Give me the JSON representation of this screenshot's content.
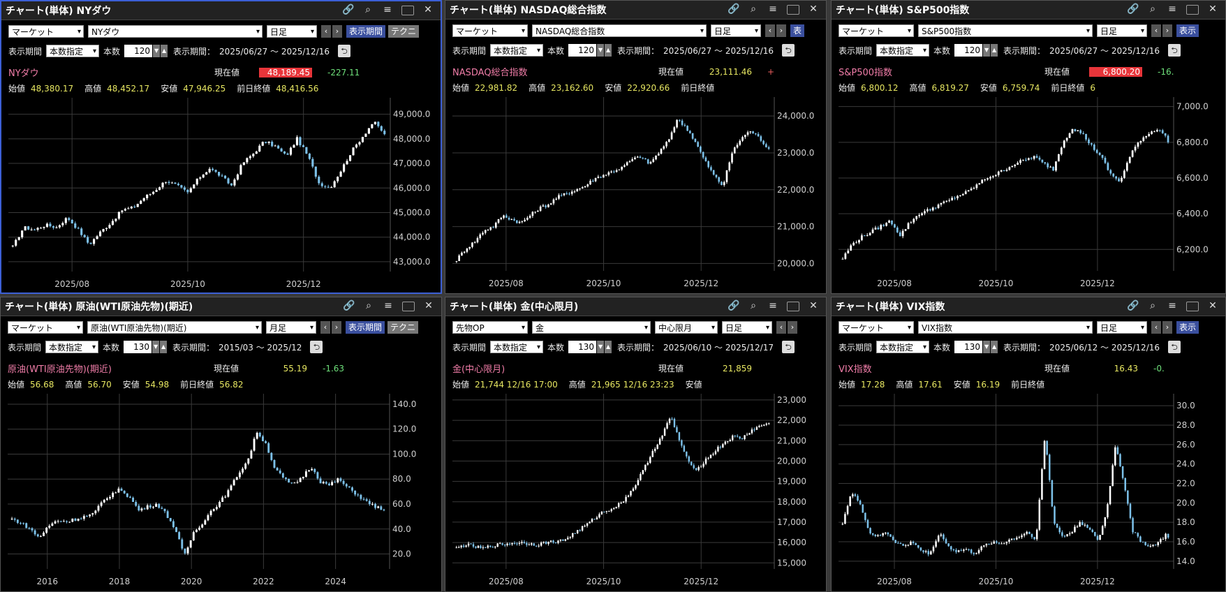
{
  "panels": [
    {
      "title": "チャート(単体) NYダウ",
      "active": true,
      "controls": {
        "market": "マーケット",
        "symbol": "NYダウ",
        "period": "日足",
        "show_period_btn": "表示期間",
        "tech_btn": "テクニ",
        "extra": ""
      },
      "range": {
        "label": "表示期間",
        "mode": "本数指定",
        "count_label": "本数",
        "count": "120",
        "range_label": "表示期間：",
        "range": "2025/06/27 ～ 2025/12/16"
      },
      "quote": {
        "name": "NYダウ",
        "current_label": "現在値",
        "current": "48,189.45",
        "current_box": true,
        "change": "-227.11",
        "change_kind": "neg"
      },
      "ohlc": [
        [
          "始値",
          "48,380.17"
        ],
        [
          "高値",
          "48,452.17"
        ],
        [
          "安値",
          "47,946.25"
        ],
        [
          "前日終値",
          "48,416.56"
        ]
      ],
      "chart_data": {
        "type": "candlestick",
        "x": [
          "2025/08",
          "2025/10",
          "2025/12"
        ],
        "yticks": [
          49000,
          48000,
          47000,
          46000,
          45000,
          44000,
          43000
        ],
        "ytick_labels": [
          "49,000.0",
          "48,000.0",
          "47,000.0",
          "46,000.0",
          "45,000.0",
          "44,000.0",
          "43,000.0"
        ],
        "ylim": [
          42600,
          49500
        ],
        "n": 120,
        "path": [
          43600,
          44400,
          44300,
          44500,
          44400,
          44800,
          44300,
          43700,
          44200,
          44600,
          45100,
          45200,
          45600,
          45900,
          46300,
          46100,
          45800,
          46400,
          46800,
          46500,
          46100,
          47000,
          47400,
          47900,
          47700,
          47300,
          48000,
          47300,
          46200,
          46000,
          46700,
          47500,
          48100,
          48700,
          48200
        ],
        "last": 48189.45
      }
    },
    {
      "title": "チャート(単体) NASDAQ総合指数",
      "active": false,
      "controls": {
        "market": "マーケット",
        "symbol": "NASDAQ総合指数",
        "period": "日足",
        "show_period_btn": "表",
        "tech_btn": "",
        "extra": ""
      },
      "range": {
        "label": "表示期間",
        "mode": "本数指定",
        "count_label": "本数",
        "count": "120",
        "range_label": "表示期間：",
        "range": "2025/06/27 ～ 2025/12/16"
      },
      "quote": {
        "name": "NASDAQ総合指数",
        "current_label": "現在値",
        "current": "23,111.46",
        "current_box": false,
        "change": "+",
        "change_kind": "pos"
      },
      "ohlc": [
        [
          "始値",
          "22,981.82"
        ],
        [
          "高値",
          "23,162.60"
        ],
        [
          "安値",
          "22,920.66"
        ],
        [
          "前日終値",
          ""
        ]
      ],
      "chart_data": {
        "type": "candlestick",
        "x": [
          "2025/08",
          "2025/10",
          "2025/12"
        ],
        "yticks": [
          24000,
          23000,
          22000,
          21000,
          20000
        ],
        "ytick_labels": [
          "24,000.0",
          "23,000.0",
          "22,000.0",
          "21,000.0",
          "20,000.0"
        ],
        "ylim": [
          19800,
          24400
        ],
        "n": 120,
        "path": [
          20100,
          20400,
          20600,
          20900,
          21000,
          21300,
          21200,
          21100,
          21300,
          21500,
          21600,
          21800,
          21900,
          22000,
          22100,
          22300,
          22400,
          22500,
          22600,
          22800,
          22900,
          22700,
          23000,
          23300,
          23900,
          23700,
          23300,
          22800,
          22400,
          22100,
          23000,
          23400,
          23600,
          23400,
          23100
        ],
        "last": 23111.46
      }
    },
    {
      "title": "チャート(単体) S&P500指数",
      "active": false,
      "controls": {
        "market": "マーケット",
        "symbol": "S&P500指数",
        "period": "日足",
        "show_period_btn": "表示",
        "tech_btn": "",
        "extra": ""
      },
      "range": {
        "label": "表示期間",
        "mode": "本数指定",
        "count_label": "本数",
        "count": "120",
        "range_label": "表示期間：",
        "range": "2025/06/27 ～ 2025/12/16"
      },
      "quote": {
        "name": "S&P500指数",
        "current_label": "現在値",
        "current": "6,800.20",
        "current_box": true,
        "change": "-16.",
        "change_kind": "neg"
      },
      "ohlc": [
        [
          "始値",
          "6,800.12"
        ],
        [
          "高値",
          "6,819.27"
        ],
        [
          "安値",
          "6,759.74"
        ],
        [
          "前日終値",
          "6"
        ]
      ],
      "chart_data": {
        "type": "candlestick",
        "x": [
          "2025/08",
          "2025/10",
          "2025/12"
        ],
        "yticks": [
          7000,
          6800,
          6600,
          6400,
          6200
        ],
        "ytick_labels": [
          "7,000.0",
          "6,800.0",
          "6,600.0",
          "6,400.0",
          "6,200.0"
        ],
        "ylim": [
          6080,
          7030
        ],
        "n": 120,
        "path": [
          6150,
          6230,
          6270,
          6300,
          6330,
          6360,
          6280,
          6350,
          6400,
          6420,
          6450,
          6470,
          6500,
          6520,
          6560,
          6600,
          6620,
          6650,
          6680,
          6700,
          6720,
          6680,
          6650,
          6800,
          6880,
          6850,
          6780,
          6720,
          6620,
          6580,
          6720,
          6810,
          6850,
          6880,
          6810
        ],
        "last": 6800.2
      }
    },
    {
      "title": "チャート(単体) 原油(WTI原油先物)(期近)",
      "active": false,
      "controls": {
        "market": "マーケット",
        "symbol": "原油(WTI原油先物)(期近)",
        "period": "月足",
        "show_period_btn": "表示期間",
        "tech_btn": "テクニ",
        "extra": ""
      },
      "range": {
        "label": "表示期間",
        "mode": "本数指定",
        "count_label": "本数",
        "count": "130",
        "range_label": "表示期間：",
        "range": "2015/03 ～ 2025/12"
      },
      "quote": {
        "name": "原油(WTI原油先物)(期近)",
        "current_label": "現在値",
        "current": "55.19",
        "current_box": false,
        "change": "-1.63",
        "change_kind": "neg"
      },
      "ohlc": [
        [
          "始値",
          "56.68"
        ],
        [
          "高値",
          "56.70"
        ],
        [
          "安値",
          "54.98"
        ],
        [
          "前日終値",
          "56.82"
        ]
      ],
      "chart_data": {
        "type": "candlestick",
        "x": [
          "2016",
          "2018",
          "2020",
          "2022",
          "2024"
        ],
        "yticks": [
          140,
          120,
          100,
          80,
          60,
          40,
          20
        ],
        "ytick_labels": [
          "140.0",
          "120.0",
          "100.0",
          "80.0",
          "60.0",
          "40.0",
          "20.0"
        ],
        "ylim": [
          8,
          145
        ],
        "n": 130,
        "path": [
          48,
          45,
          40,
          33,
          42,
          47,
          46,
          48,
          50,
          52,
          62,
          68,
          72,
          65,
          55,
          58,
          60,
          52,
          40,
          18,
          37,
          45,
          55,
          62,
          72,
          85,
          95,
          118,
          108,
          88,
          80,
          75,
          82,
          90,
          78,
          75,
          80,
          73,
          68,
          62,
          58,
          56
        ],
        "last": 55.19
      }
    },
    {
      "title": "チャート(単体) 金(中心限月)",
      "active": false,
      "controls": {
        "market": "先物OP",
        "symbol": "金",
        "period": "日足",
        "show_period_btn": "",
        "tech_btn": "",
        "extra": "中心限月"
      },
      "range": {
        "label": "表示期間",
        "mode": "本数指定",
        "count_label": "本数",
        "count": "130",
        "range_label": "表示期間：",
        "range": "2025/06/10 ～ 2025/12/17"
      },
      "quote": {
        "name": "金(中心限月)",
        "current_label": "現在値",
        "current": "21,859",
        "current_box": false,
        "change": "",
        "change_kind": "neg"
      },
      "ohlc": [
        [
          "始値",
          "21,744  12/16  17:00"
        ],
        [
          "高値",
          "21,965  12/16  23:23"
        ],
        [
          "安値",
          ""
        ]
      ],
      "chart_data": {
        "type": "candlestick",
        "x": [
          "2025/08",
          "2025/10",
          "2025/12"
        ],
        "yticks": [
          23000,
          22000,
          21000,
          20000,
          19000,
          18000,
          17000,
          16000,
          15000
        ],
        "ytick_labels": [
          "23,000",
          "22,000",
          "21,000",
          "20,000",
          "19,000",
          "18,000",
          "17,000",
          "16,000",
          "15,000"
        ],
        "ylim": [
          14700,
          23100
        ],
        "n": 130,
        "path": [
          15700,
          15900,
          15800,
          15700,
          15850,
          15900,
          15950,
          16000,
          15950,
          15900,
          16000,
          16050,
          16100,
          16400,
          16700,
          17000,
          17400,
          17600,
          17800,
          18200,
          18800,
          19600,
          20500,
          21200,
          22200,
          21000,
          19900,
          19600,
          20100,
          20500,
          20900,
          21200,
          21100,
          21500,
          21700,
          21900
        ],
        "last": 21859
      }
    },
    {
      "title": "チャート(単体) VIX指数",
      "active": false,
      "controls": {
        "market": "マーケット",
        "symbol": "VIX指数",
        "period": "日足",
        "show_period_btn": "表示",
        "tech_btn": "",
        "extra": ""
      },
      "range": {
        "label": "表示期間",
        "mode": "本数指定",
        "count_label": "本数",
        "count": "130",
        "range_label": "表示期間：",
        "range": "2025/06/12 ～ 2025/12/16"
      },
      "quote": {
        "name": "VIX指数",
        "current_label": "現在値",
        "current": "16.43",
        "current_box": false,
        "change": "-0.",
        "change_kind": "neg"
      },
      "ohlc": [
        [
          "始値",
          "17.28"
        ],
        [
          "高値",
          "17.61"
        ],
        [
          "安値",
          "16.19"
        ],
        [
          "前日終値",
          ""
        ]
      ],
      "chart_data": {
        "type": "candlestick",
        "x": [
          "2025/08",
          "2025/10",
          "2025/12"
        ],
        "yticks": [
          30,
          28,
          26,
          24,
          22,
          20,
          18,
          16,
          14
        ],
        "ytick_labels": [
          "30.0",
          "28.0",
          "26.0",
          "24.0",
          "22.0",
          "20.0",
          "18.0",
          "16.0",
          "14.0"
        ],
        "ylim": [
          13.2,
          30.8
        ],
        "n": 130,
        "path": [
          18,
          21,
          20,
          17,
          16.5,
          17,
          16,
          15.5,
          16,
          15,
          14.8,
          17,
          15.5,
          15,
          15.2,
          14.8,
          15.5,
          16,
          15.8,
          16.2,
          16.5,
          17,
          16.3,
          27,
          18,
          16.5,
          17,
          18,
          17.5,
          16,
          19,
          26,
          22,
          17,
          16,
          15.5,
          16,
          17
        ],
        "last": 16.43
      }
    }
  ]
}
